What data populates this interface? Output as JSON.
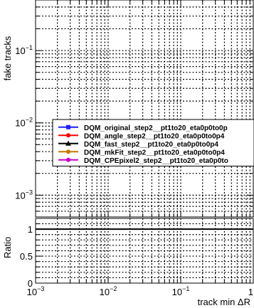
{
  "chart_data": {
    "type": "line",
    "panels": [
      {
        "name": "main",
        "ylabel": "fake tracks",
        "yscale": "log",
        "ylim": [
          0.0005,
          0.5
        ],
        "y_tick_labels": [
          {
            "value": 0.001,
            "base": "10",
            "exp": "−3"
          },
          {
            "value": 0.01,
            "base": "10",
            "exp": "−2"
          },
          {
            "value": 0.1,
            "base": "10",
            "exp": "−1"
          }
        ]
      },
      {
        "name": "ratio",
        "ylabel": "Ratio",
        "yscale": "linear",
        "ylim": [
          0,
          1.2
        ],
        "reference_line": 1,
        "y_tick_labels": [
          {
            "value": 0,
            "text": "0"
          },
          {
            "value": 0.5,
            "text": "0.5"
          },
          {
            "value": 1,
            "text": "1"
          }
        ]
      }
    ],
    "xlabel": "track min ΔR",
    "xscale": "log",
    "xlim": [
      0.001,
      1
    ],
    "x_tick_labels": [
      {
        "value": 0.001,
        "base": "10",
        "exp": "−3"
      },
      {
        "value": 0.01,
        "base": "10",
        "exp": "−2"
      },
      {
        "value": 0.1,
        "base": "10",
        "exp": "−1"
      },
      {
        "value": 1,
        "base": "1",
        "exp": ""
      }
    ],
    "grid": true,
    "legend_position": "center-right",
    "series": [
      {
        "name": "DQM_original_step2__pt1to20_eta0p0to0p",
        "color": "#1f1fff",
        "marker": "square",
        "points": []
      },
      {
        "name": "DQM_angle_step2__pt1to20_eta0p0to0p4",
        "color": "#ff0000",
        "marker": "circle",
        "points": []
      },
      {
        "name": "DQM_fast_step2__pt1to20_eta0p0to0p4",
        "color": "#000000",
        "marker": "triangle",
        "points": []
      },
      {
        "name": "DQM_mkFit_step2__pt1to20_eta0p0to0p4",
        "color": "#c87800",
        "marker": "circle",
        "points": []
      },
      {
        "name": "DQM_CPEpixel2_step2__pt1to20_eta0p0to",
        "color": "#c800c8",
        "marker": "circle",
        "points": []
      }
    ]
  }
}
